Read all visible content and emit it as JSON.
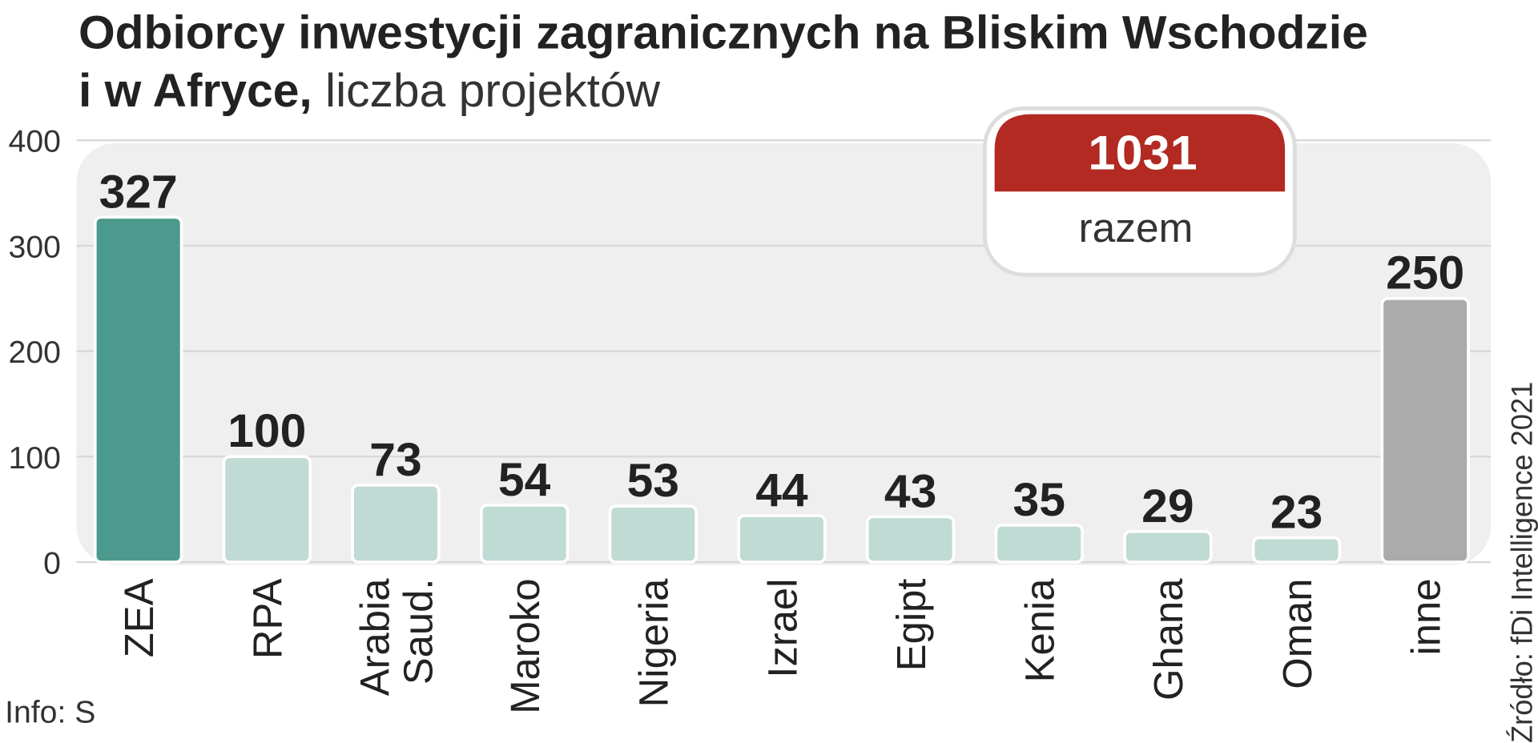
{
  "chart_data": {
    "type": "bar",
    "title_lines": [
      "Odbiorcy inwestycji zagranicznych na Bliskim Wschodzie",
      "i w Afryce,"
    ],
    "subtitle": "liczba projektów",
    "categories": [
      [
        "ZEA"
      ],
      [
        "RPA"
      ],
      [
        "Arabia",
        "Saud."
      ],
      [
        "Maroko"
      ],
      [
        "Nigeria"
      ],
      [
        "Izrael"
      ],
      [
        "Egipt"
      ],
      [
        "Kenia"
      ],
      [
        "Ghana"
      ],
      [
        "Oman"
      ],
      [
        "inne"
      ]
    ],
    "values": [
      327,
      100,
      73,
      54,
      53,
      44,
      43,
      35,
      29,
      23,
      250
    ],
    "colors": [
      "#4b9a8d",
      "#c0dad4",
      "#c0dad4",
      "#c0dad4",
      "#c0dad4",
      "#c0dad4",
      "#c0dad4",
      "#c0dad4",
      "#c0dad4",
      "#c0dad4",
      "#ababab"
    ],
    "ylim": [
      0,
      400
    ],
    "yticks": [
      0,
      100,
      200,
      300,
      400
    ],
    "grid": true,
    "annotation": {
      "value": 1031,
      "label": "razem"
    },
    "source": "Źródło: fDi Intelligence 2021",
    "credit": "Info: S"
  }
}
